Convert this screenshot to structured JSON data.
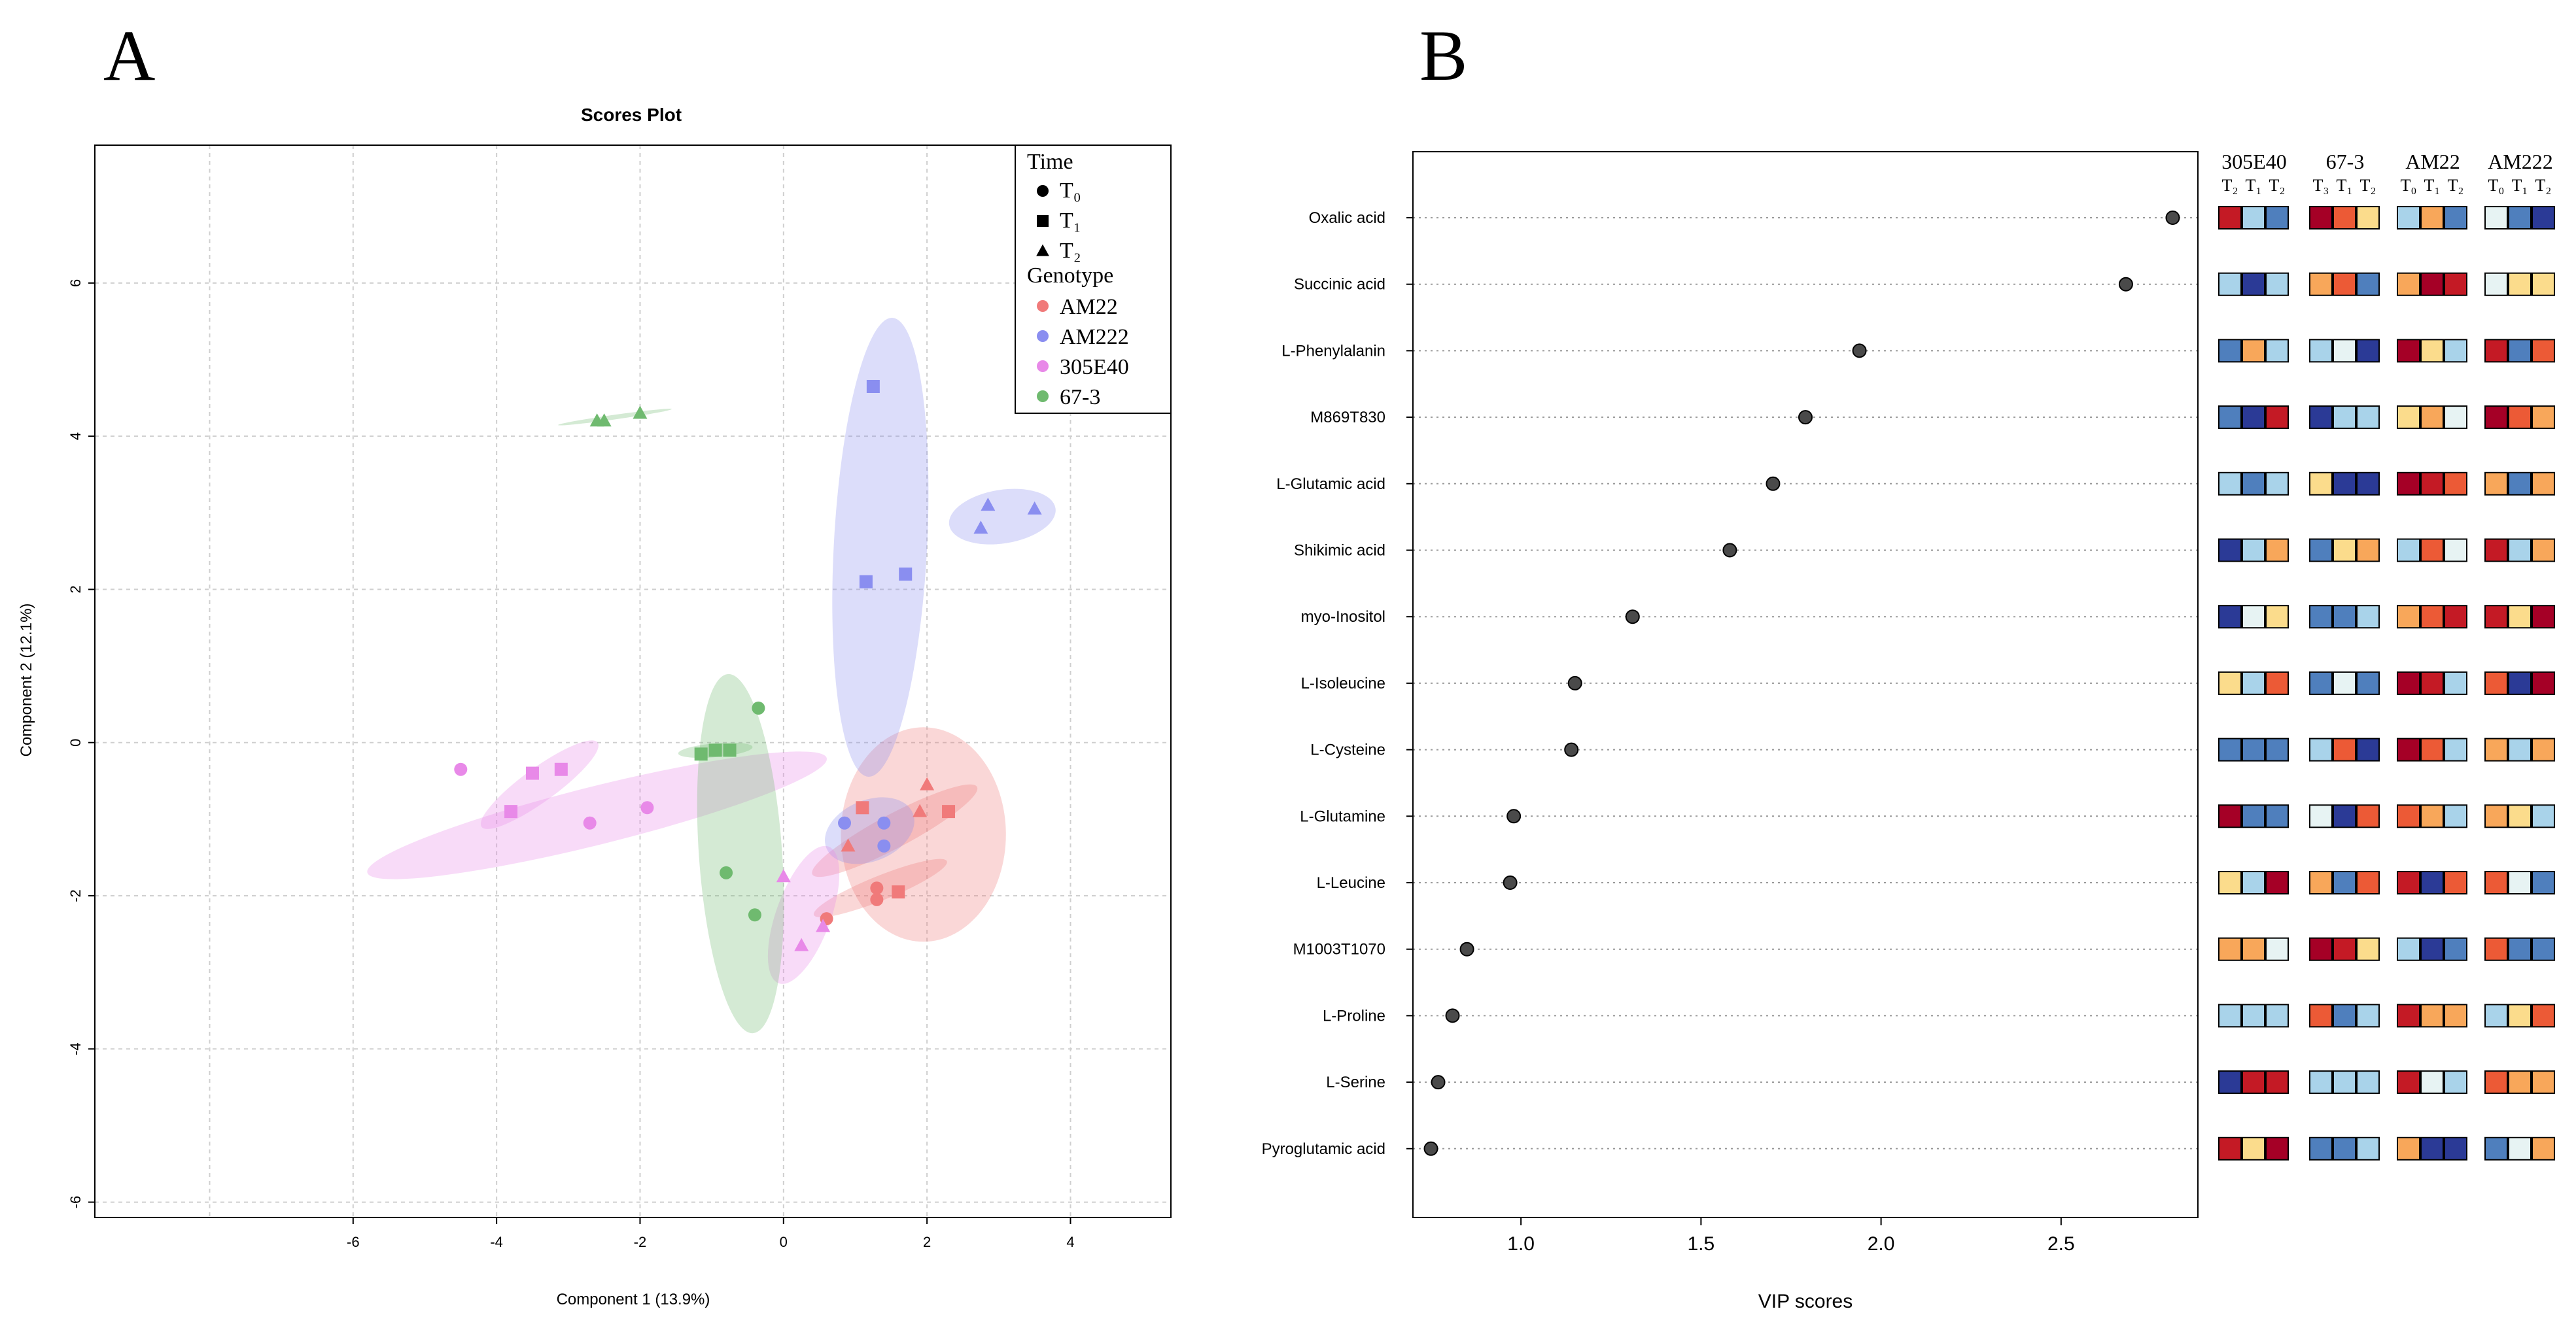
{
  "panels": {
    "a_label": "A",
    "b_label": "B"
  },
  "chart_data": [
    {
      "type": "scatter",
      "title": "Scores Plot",
      "xlabel": "Component 1 (13.9%)",
      "ylabel": "Component 2 (12.1%)",
      "xlim": [
        -9.6,
        5.4
      ],
      "ylim": [
        -6.2,
        7.8
      ],
      "x_ticks": [
        -8,
        -6,
        -4,
        -2,
        0,
        2,
        4
      ],
      "y_ticks": [
        -6,
        -4,
        -2,
        0,
        2,
        4,
        6
      ],
      "x_tick_labels": [
        "-6",
        "-4",
        "-2",
        "0",
        "2",
        "4"
      ],
      "y_tick_labels": [
        "-6",
        "-4",
        "-2",
        "0",
        "2",
        "4",
        "6"
      ],
      "x_label_ticks": [
        -6,
        -4,
        -2,
        0,
        2,
        4
      ],
      "legend": {
        "position": "top-right",
        "time_title": "Time",
        "time_items": [
          {
            "label": "T₀",
            "shape": "circle"
          },
          {
            "label": "T₁",
            "shape": "square"
          },
          {
            "label": "T₂",
            "shape": "triangle"
          }
        ],
        "genotype_title": "Genotype",
        "genotype_items": [
          {
            "label": "AM22",
            "color": "#f07a7a"
          },
          {
            "label": "AM222",
            "color": "#8a8ef0"
          },
          {
            "label": "305E40",
            "color": "#e889e8"
          },
          {
            "label": "67-3",
            "color": "#6fba6f"
          }
        ]
      },
      "series": [
        {
          "genotype": "AM22",
          "color": "#f07a7a",
          "points": [
            {
              "x": 0.6,
              "y": -2.3,
              "shape": "circle"
            },
            {
              "x": 1.3,
              "y": -1.9,
              "shape": "circle"
            },
            {
              "x": 1.3,
              "y": -2.05,
              "shape": "circle"
            },
            {
              "x": 1.1,
              "y": -0.85,
              "shape": "square"
            },
            {
              "x": 1.6,
              "y": -1.95,
              "shape": "square"
            },
            {
              "x": 2.3,
              "y": -0.9,
              "shape": "square"
            },
            {
              "x": 0.9,
              "y": -1.35,
              "shape": "triangle"
            },
            {
              "x": 1.9,
              "y": -0.9,
              "shape": "triangle"
            },
            {
              "x": 2.0,
              "y": -0.55,
              "shape": "triangle"
            }
          ]
        },
        {
          "genotype": "AM222",
          "color": "#8a8ef0",
          "points": [
            {
              "x": 0.85,
              "y": -1.05,
              "shape": "circle"
            },
            {
              "x": 1.4,
              "y": -1.05,
              "shape": "circle"
            },
            {
              "x": 1.4,
              "y": -1.35,
              "shape": "circle"
            },
            {
              "x": 1.25,
              "y": 4.65,
              "shape": "square"
            },
            {
              "x": 1.15,
              "y": 2.1,
              "shape": "square"
            },
            {
              "x": 1.7,
              "y": 2.2,
              "shape": "square"
            },
            {
              "x": 2.85,
              "y": 3.1,
              "shape": "triangle"
            },
            {
              "x": 2.75,
              "y": 2.8,
              "shape": "triangle"
            },
            {
              "x": 3.5,
              "y": 3.05,
              "shape": "triangle"
            }
          ]
        },
        {
          "genotype": "305E40",
          "color": "#e889e8",
          "points": [
            {
              "x": -4.5,
              "y": -0.35,
              "shape": "circle"
            },
            {
              "x": -2.7,
              "y": -1.05,
              "shape": "circle"
            },
            {
              "x": -1.9,
              "y": -0.85,
              "shape": "circle"
            },
            {
              "x": -3.8,
              "y": -0.9,
              "shape": "square"
            },
            {
              "x": -3.5,
              "y": -0.4,
              "shape": "square"
            },
            {
              "x": -3.1,
              "y": -0.35,
              "shape": "square"
            },
            {
              "x": 0.0,
              "y": -1.75,
              "shape": "triangle"
            },
            {
              "x": 0.55,
              "y": -2.4,
              "shape": "triangle"
            },
            {
              "x": 0.25,
              "y": -2.65,
              "shape": "triangle"
            }
          ]
        },
        {
          "genotype": "67-3",
          "color": "#6fba6f",
          "points": [
            {
              "x": -0.35,
              "y": 0.45,
              "shape": "circle"
            },
            {
              "x": -0.8,
              "y": -1.7,
              "shape": "circle"
            },
            {
              "x": -0.4,
              "y": -2.25,
              "shape": "circle"
            },
            {
              "x": -1.15,
              "y": -0.15,
              "shape": "square"
            },
            {
              "x": -0.95,
              "y": -0.1,
              "shape": "square"
            },
            {
              "x": -0.75,
              "y": -0.1,
              "shape": "square"
            },
            {
              "x": -2.6,
              "y": 4.2,
              "shape": "triangle"
            },
            {
              "x": -2.5,
              "y": 4.2,
              "shape": "triangle"
            },
            {
              "x": -2.0,
              "y": 4.3,
              "shape": "triangle"
            }
          ]
        }
      ],
      "ellipses": [
        {
          "genotype": "AM22",
          "color": "#f07a7a",
          "cx": 1.95,
          "cy": -1.2,
          "rx": 1.15,
          "ry": 1.4,
          "angle": 0
        },
        {
          "genotype": "AM22",
          "color": "#f07a7a",
          "cx": 1.35,
          "cy": -1.9,
          "rx": 1.0,
          "ry": 0.16,
          "angle": 22
        },
        {
          "genotype": "AM22",
          "color": "#f07a7a",
          "cx": 1.55,
          "cy": -1.15,
          "rx": 1.3,
          "ry": 0.22,
          "angle": 28
        },
        {
          "genotype": "AM222",
          "color": "#8a8ef0",
          "cx": 1.35,
          "cy": 2.55,
          "rx": 0.65,
          "ry": 3.0,
          "angle": -3
        },
        {
          "genotype": "AM222",
          "color": "#8a8ef0",
          "cx": 3.05,
          "cy": 2.95,
          "rx": 0.75,
          "ry": 0.35,
          "angle": 9
        },
        {
          "genotype": "AM222",
          "color": "#8a8ef0",
          "cx": 1.2,
          "cy": -1.15,
          "rx": 0.65,
          "ry": 0.4,
          "angle": 22
        },
        {
          "genotype": "305E40",
          "color": "#e889e8",
          "cx": -2.6,
          "cy": -0.95,
          "rx": 3.3,
          "ry": 0.38,
          "angle": 14
        },
        {
          "genotype": "305E40",
          "color": "#e889e8",
          "cx": -3.4,
          "cy": -0.55,
          "rx": 1.0,
          "ry": 0.22,
          "angle": 36
        },
        {
          "genotype": "305E40",
          "color": "#e889e8",
          "cx": 0.28,
          "cy": -2.25,
          "rx": 0.38,
          "ry": 0.95,
          "angle": -20
        },
        {
          "genotype": "67-3",
          "color": "#6fba6f",
          "cx": -0.6,
          "cy": -1.45,
          "rx": 0.58,
          "ry": 2.35,
          "angle": 4
        },
        {
          "genotype": "67-3",
          "color": "#6fba6f",
          "cx": -0.95,
          "cy": -0.1,
          "rx": 0.52,
          "ry": 0.09,
          "angle": 5
        },
        {
          "genotype": "67-3",
          "color": "#6fba6f",
          "cx": -2.35,
          "cy": 4.25,
          "rx": 0.8,
          "ry": 0.03,
          "angle": 8
        }
      ]
    },
    {
      "type": "dot",
      "xlabel": "VIP scores",
      "xlim": [
        0.7,
        2.88
      ],
      "x_ticks": [
        1.0,
        1.5,
        2.0,
        2.5
      ],
      "x_tick_labels": [
        "1.0",
        "1.5",
        "2.0",
        "2.5"
      ],
      "categories": [
        "Oxalic acid",
        "Succinic acid",
        "L-Phenylalanin",
        "M869T830",
        "L-Glutamic acid",
        "Shikimic acid",
        "myo-Inositol",
        "L-Isoleucine",
        "L-Cysteine",
        "L-Glutamine",
        "L-Leucine",
        "M1003T1070",
        "L-Proline",
        "L-Serine",
        "Pyroglutamic acid"
      ],
      "values": [
        2.81,
        2.68,
        1.94,
        1.79,
        1.7,
        1.58,
        1.31,
        1.15,
        1.14,
        0.98,
        0.97,
        0.85,
        0.81,
        0.77,
        0.75
      ],
      "heatmap": {
        "groups": [
          {
            "name": "305E40",
            "times": [
              "T₂",
              "T₁",
              "T₂"
            ]
          },
          {
            "name": "67-3",
            "times": [
              "T₃",
              "T₁",
              "T₂"
            ]
          },
          {
            "name": "AM22",
            "times": [
              "T₀",
              "T₁",
              "T₂"
            ]
          },
          {
            "name": "AM222",
            "times": [
              "T₀",
              "T₁",
              "T₂"
            ]
          }
        ],
        "palette": {
          "1": "#2b3a96",
          "2": "#4f7fbd",
          "3": "#a9d3ea",
          "4": "#e7f3f3",
          "5": "#fbdc8c",
          "6": "#f8a75a",
          "7": "#ec5a36",
          "8": "#c41a25",
          "9": "#a50026"
        },
        "rows": [
          [
            8,
            3,
            2,
            9,
            7,
            5,
            3,
            6,
            2,
            4,
            2,
            1
          ],
          [
            3,
            1,
            3,
            6,
            7,
            2,
            6,
            9,
            8,
            4,
            5,
            5
          ],
          [
            2,
            6,
            3,
            3,
            4,
            1,
            9,
            5,
            3,
            8,
            2,
            7
          ],
          [
            2,
            1,
            8,
            1,
            3,
            3,
            5,
            6,
            4,
            9,
            7,
            6
          ],
          [
            3,
            2,
            3,
            5,
            1,
            1,
            9,
            8,
            7,
            6,
            2,
            6
          ],
          [
            1,
            3,
            6,
            2,
            5,
            6,
            3,
            7,
            4,
            8,
            3,
            6
          ],
          [
            1,
            4,
            5,
            2,
            2,
            3,
            6,
            7,
            8,
            8,
            5,
            9
          ],
          [
            5,
            3,
            7,
            2,
            4,
            2,
            9,
            8,
            3,
            7,
            1,
            9
          ],
          [
            2,
            2,
            2,
            3,
            7,
            1,
            9,
            7,
            3,
            6,
            3,
            6
          ],
          [
            9,
            2,
            2,
            4,
            1,
            7,
            7,
            6,
            3,
            6,
            5,
            3
          ],
          [
            5,
            3,
            9,
            6,
            2,
            7,
            8,
            1,
            7,
            7,
            4,
            2
          ],
          [
            6,
            6,
            4,
            9,
            8,
            5,
            3,
            1,
            2,
            7,
            2,
            2
          ],
          [
            3,
            3,
            3,
            7,
            2,
            3,
            8,
            6,
            6,
            3,
            5,
            7
          ],
          [
            1,
            8,
            8,
            3,
            3,
            3,
            8,
            4,
            3,
            7,
            6,
            6
          ],
          [
            8,
            5,
            9,
            2,
            2,
            3,
            6,
            1,
            1,
            2,
            4,
            6
          ]
        ]
      }
    }
  ]
}
